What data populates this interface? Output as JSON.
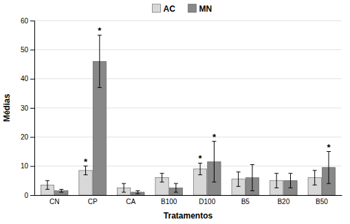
{
  "chart_data": {
    "type": "bar",
    "xlabel": "Tratamentos",
    "ylabel": "Médias",
    "categories": [
      "CN",
      "CP",
      "CA",
      "B100",
      "D100",
      "B5",
      "B20",
      "B50"
    ],
    "series": [
      {
        "name": "AC",
        "color": "#d8d8d8",
        "values": [
          3.5,
          8.5,
          2.5,
          6.0,
          9.0,
          5.5,
          5.0,
          6.0
        ],
        "errors": [
          1.5,
          1.5,
          1.5,
          1.5,
          2.0,
          2.5,
          2.5,
          2.5
        ]
      },
      {
        "name": "MN",
        "color": "#888888",
        "values": [
          1.5,
          46.0,
          1.0,
          2.5,
          11.5,
          6.0,
          5.0,
          9.5
        ],
        "errors": [
          0.5,
          9.0,
          0.5,
          1.5,
          7.0,
          4.5,
          2.5,
          5.5
        ]
      }
    ],
    "annotations": [
      {
        "text": "*",
        "series": "AC",
        "category": "CP"
      },
      {
        "text": "*",
        "series": "AC",
        "category": "D100"
      },
      {
        "text": "*",
        "series": "MN",
        "category": "CP"
      },
      {
        "text": "*",
        "series": "MN",
        "category": "D100"
      },
      {
        "text": "*",
        "series": "MN",
        "category": "B50"
      }
    ],
    "ylim": [
      0,
      60
    ],
    "yticks": [
      0,
      10,
      20,
      30,
      40,
      50,
      60
    ],
    "grid": true,
    "legend": "top"
  }
}
